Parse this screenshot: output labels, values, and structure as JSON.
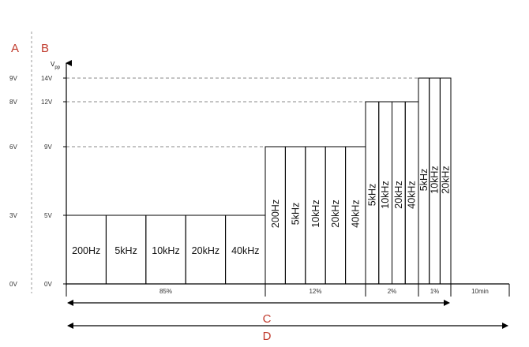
{
  "labels": {
    "a": "A",
    "b": "B",
    "c": "C",
    "d": "D"
  },
  "axis": {
    "label_main": "V",
    "label_sub": "pp"
  },
  "ticks_a": [
    "9V",
    "8V",
    "6V",
    "3V",
    "0V"
  ],
  "ticks_b": [
    "14V",
    "12V",
    "9V",
    "5V",
    "0V"
  ],
  "segments": [
    "85%",
    "12%",
    "2%",
    "1%",
    "10min"
  ],
  "blocks_5v": [
    "200Hz",
    "5kHz",
    "10kHz",
    "20kHz",
    "40kHz"
  ],
  "blocks_9v": [
    "200Hz",
    "5kHz",
    "10kHz",
    "20kHz",
    "40kHz"
  ],
  "blocks_12v": [
    "5kHz",
    "10kHz",
    "20kHz",
    "40kHz"
  ],
  "blocks_14v": [
    "5kHz",
    "10kHz",
    "20kHz"
  ],
  "colors": {
    "letters": "#c0392b",
    "dashes": "#8a8a8a"
  }
}
